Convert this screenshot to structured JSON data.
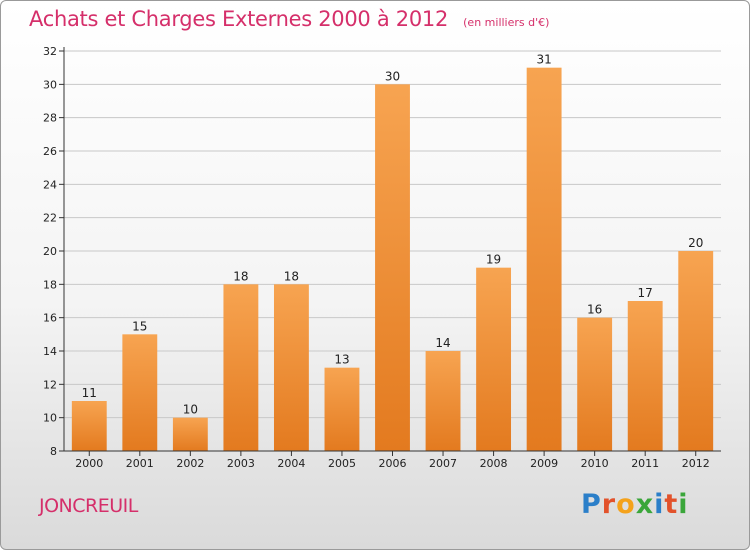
{
  "header": {
    "title": "Achats et Charges Externes 2000 à 2012",
    "subtitle": "(en milliers d'€)"
  },
  "footer": {
    "place": "JONCREUIL",
    "brand": "Proxiti",
    "brand_colors": [
      "#2b7fc9",
      "#e2522b",
      "#f4a21b",
      "#3aa63a",
      "#2b7fc9",
      "#e2522b",
      "#3aa63a"
    ]
  },
  "colors": {
    "bar_top": "#f7a451",
    "bar_bottom": "#e37a1f",
    "grid": "#c8c8c8",
    "axis": "#333333"
  },
  "chart_data": {
    "type": "bar",
    "categories": [
      "2000",
      "2001",
      "2002",
      "2003",
      "2004",
      "2005",
      "2006",
      "2007",
      "2008",
      "2009",
      "2010",
      "2011",
      "2012"
    ],
    "values": [
      11,
      15,
      10,
      18,
      18,
      13,
      30,
      14,
      19,
      31,
      16,
      17,
      20
    ],
    "title": "Achats et Charges Externes 2000 à 2012",
    "subtitle": "(en milliers d'€)",
    "ylim": [
      8,
      32
    ],
    "yticks": [
      8,
      10,
      12,
      14,
      16,
      18,
      20,
      22,
      24,
      26,
      28,
      30,
      32
    ],
    "grid": true,
    "data_labels": true
  }
}
